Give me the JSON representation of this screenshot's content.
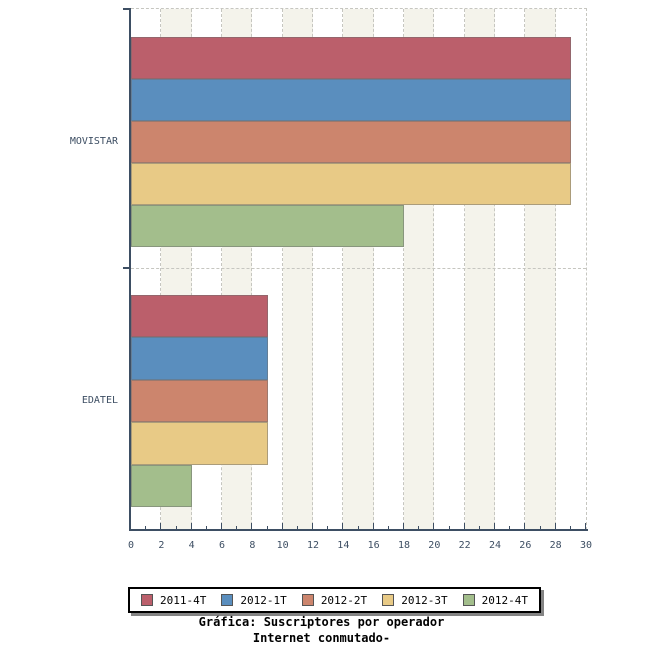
{
  "chart_data": {
    "type": "bar",
    "orientation": "horizontal",
    "title": "Gráfica: Suscriptores por operador",
    "subtitle": "Internet conmutado-",
    "categories": [
      "MOVISTAR",
      "EDATEL"
    ],
    "series": [
      {
        "name": "2011-4T",
        "color": "#bb5f6b",
        "values": [
          29,
          9
        ]
      },
      {
        "name": "2012-1T",
        "color": "#5a8ebe",
        "values": [
          29,
          9
        ]
      },
      {
        "name": "2012-2T",
        "color": "#cc856d",
        "values": [
          29,
          9
        ]
      },
      {
        "name": "2012-3T",
        "color": "#e8ca86",
        "values": [
          29,
          9
        ]
      },
      {
        "name": "2012-4T",
        "color": "#a3be8c",
        "values": [
          18,
          4
        ]
      }
    ],
    "xlim": [
      0,
      30
    ],
    "x_tick_labels": [
      0,
      2,
      4,
      6,
      8,
      10,
      12,
      14,
      16,
      18,
      20,
      22,
      24,
      26,
      28,
      30
    ],
    "minor_tick_step": 1,
    "grid": "vertical-dashed",
    "background_bands": [
      [
        2,
        4
      ],
      [
        6,
        8
      ],
      [
        10,
        12
      ],
      [
        14,
        16
      ],
      [
        18,
        20
      ],
      [
        22,
        24
      ],
      [
        26,
        28
      ]
    ],
    "legend_position": "bottom",
    "colors": {
      "axis": "#3d4e63",
      "grid": "#c6c6c0",
      "band": "#f4f3eb",
      "bar_border": "#6e6e6e",
      "legend_border": "#000000",
      "legend_shadow": "#848484",
      "title_text": "#000000"
    }
  }
}
